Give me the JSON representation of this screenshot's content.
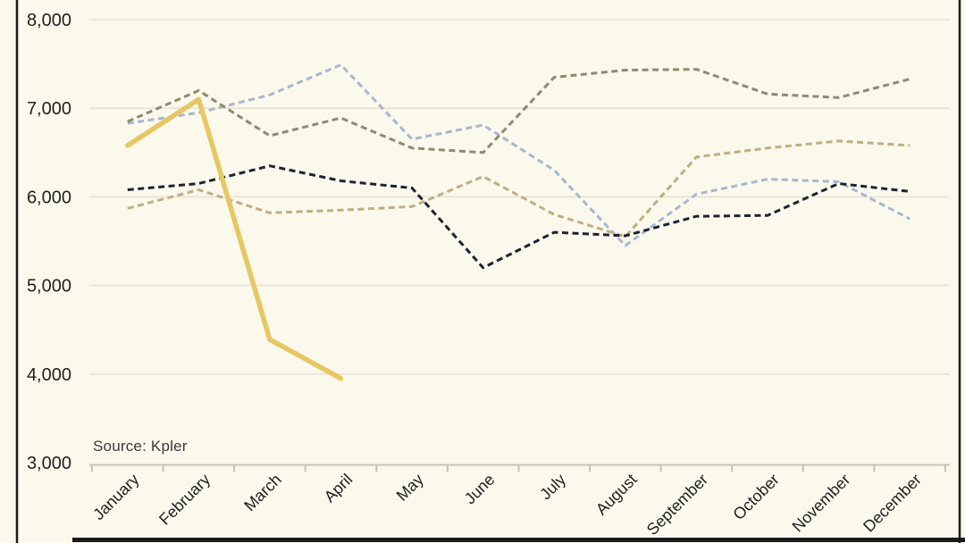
{
  "chart_data": {
    "type": "line",
    "title": "",
    "source_note": "Source: Kpler",
    "categories": [
      "January",
      "February",
      "March",
      "April",
      "May",
      "June",
      "July",
      "August",
      "September",
      "October",
      "November",
      "December"
    ],
    "y_axis": {
      "min": 3000,
      "max": 8000,
      "step": 1000,
      "tick_labels": [
        "3,000",
        "4,000",
        "5,000",
        "6,000",
        "7,000",
        "8,000"
      ]
    },
    "grid": true,
    "legend": "none",
    "series": [
      {
        "name": "light-blue-dashed",
        "style": "dashed",
        "color": "#A4B9CE",
        "values": [
          6830,
          6950,
          7150,
          7490,
          6650,
          6810,
          6300,
          5450,
          6030,
          6200,
          6170,
          5750
        ]
      },
      {
        "name": "olive-dashed",
        "style": "dashed",
        "color": "#8C8C6E",
        "values": [
          6850,
          7200,
          6690,
          6890,
          6550,
          6500,
          7350,
          7430,
          7440,
          7160,
          7120,
          7330
        ]
      },
      {
        "name": "tan-dashed",
        "style": "dashed",
        "color": "#C1AE80",
        "values": [
          5870,
          6080,
          5820,
          5850,
          5890,
          6230,
          5800,
          5550,
          6450,
          6550,
          6630,
          6580
        ]
      },
      {
        "name": "navy-dashed",
        "style": "dashed",
        "color": "#1B2433",
        "values": [
          6080,
          6150,
          6350,
          6180,
          6100,
          5200,
          5600,
          5560,
          5780,
          5790,
          6150,
          6060
        ]
      },
      {
        "name": "gold-solid",
        "style": "solid",
        "color": "#E7C664",
        "values": [
          6580,
          7100,
          4390,
          3950,
          null,
          null,
          null,
          null,
          null,
          null,
          null,
          null
        ]
      }
    ]
  },
  "frame": {
    "background_color": "#FBF8EC",
    "gridline_color": "#E7E3D4",
    "axis_color": "#C9C4B2",
    "border_color": "#1A1A1A",
    "text_color": "#1F1F1F"
  }
}
